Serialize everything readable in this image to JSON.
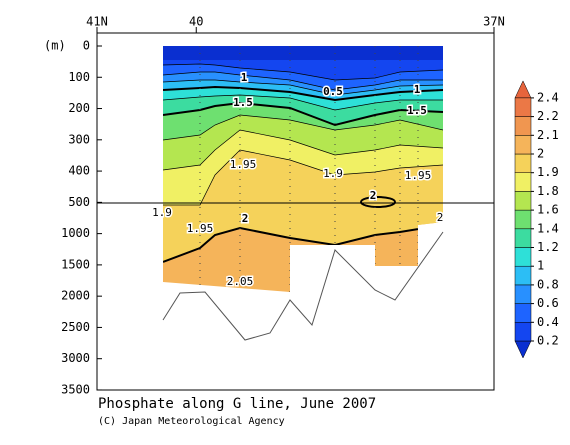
{
  "chart_data": {
    "type": "contour",
    "title": "Phosphate along G line, June 2007",
    "source": "(C) Japan Meteorological Agency",
    "ylabel": "(m)",
    "xlim": [
      41,
      37
    ],
    "xticks": [
      {
        "value": 41,
        "label": "41N"
      },
      40,
      {
        "value": 37,
        "label": "37N"
      }
    ],
    "ylim": [
      0,
      3500
    ],
    "yticks": [
      0,
      100,
      200,
      300,
      400,
      500,
      1000,
      1500,
      2000,
      2500,
      3000,
      3500
    ],
    "colorbar": {
      "ticks": [
        0.2,
        0.4,
        0.6,
        0.8,
        1.0,
        1.2,
        1.4,
        1.6,
        1.8,
        1.9,
        2.0,
        2.1,
        2.2,
        2.4
      ],
      "colors": [
        "#0a2fd0",
        "#1446f0",
        "#1e64ff",
        "#2890ff",
        "#2cbef5",
        "#2ee0d8",
        "#3cdca0",
        "#6ee070",
        "#b4e650",
        "#f0f064",
        "#f5d25a",
        "#f5b45a",
        "#f09650",
        "#eb7846",
        "#e6643c"
      ]
    },
    "contour_labels": [
      1,
      0.5,
      1,
      1.5,
      1.5,
      1.95,
      1.9,
      1.95,
      2,
      1.9,
      1.95,
      2,
      2.05,
      2
    ]
  }
}
